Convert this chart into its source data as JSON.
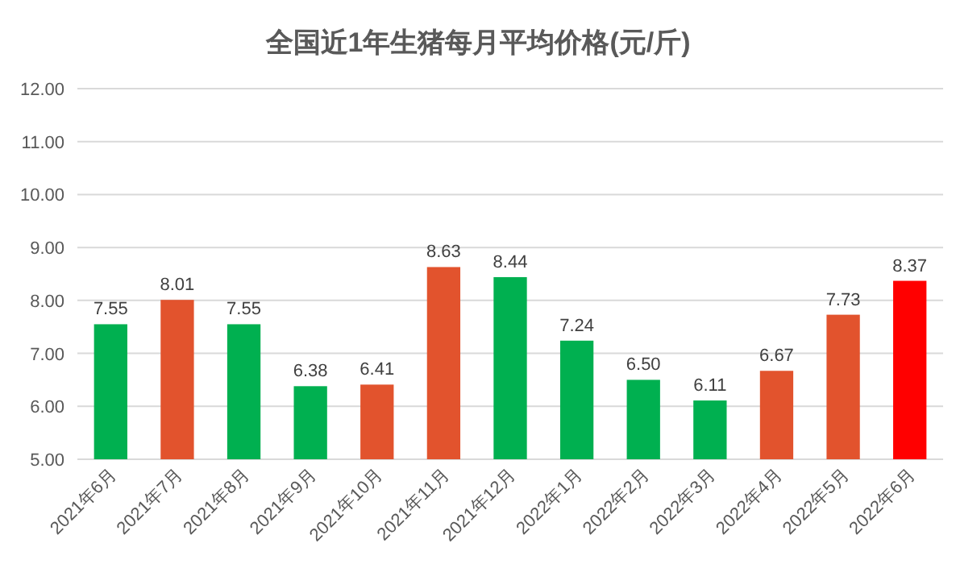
{
  "chart_data": {
    "type": "bar",
    "title": "全国近1年生猪每月平均价格(元/斤)",
    "categories": [
      "2021年6月",
      "2021年7月",
      "2021年8月",
      "2021年9月",
      "2021年10月",
      "2021年11月",
      "2021年12月",
      "2022年1月",
      "2022年2月",
      "2022年3月",
      "2022年4月",
      "2022年5月",
      "2022年6月"
    ],
    "values": [
      7.55,
      8.01,
      7.55,
      6.38,
      6.41,
      8.63,
      8.44,
      7.24,
      6.5,
      6.11,
      6.67,
      7.73,
      8.37
    ],
    "value_labels": [
      "7.55",
      "8.01",
      "7.55",
      "6.38",
      "6.41",
      "8.63",
      "8.44",
      "7.24",
      "6.50",
      "6.11",
      "6.67",
      "7.73",
      "8.37"
    ],
    "colors": [
      "#00b050",
      "#e2532d",
      "#00b050",
      "#00b050",
      "#e2532d",
      "#e2532d",
      "#00b050",
      "#00b050",
      "#00b050",
      "#00b050",
      "#e2532d",
      "#e2532d",
      "#ff0000"
    ],
    "ylim": [
      5,
      12
    ],
    "yticks": [
      {
        "value": 5,
        "label": "5.00"
      },
      {
        "value": 6,
        "label": "6.00"
      },
      {
        "value": 7,
        "label": "7.00"
      },
      {
        "value": 8,
        "label": "8.00"
      },
      {
        "value": 9,
        "label": "9.00"
      },
      {
        "value": 10,
        "label": "10.00"
      },
      {
        "value": 11,
        "label": "11.00"
      },
      {
        "value": 12,
        "label": "12.00"
      }
    ],
    "grid": "y"
  }
}
